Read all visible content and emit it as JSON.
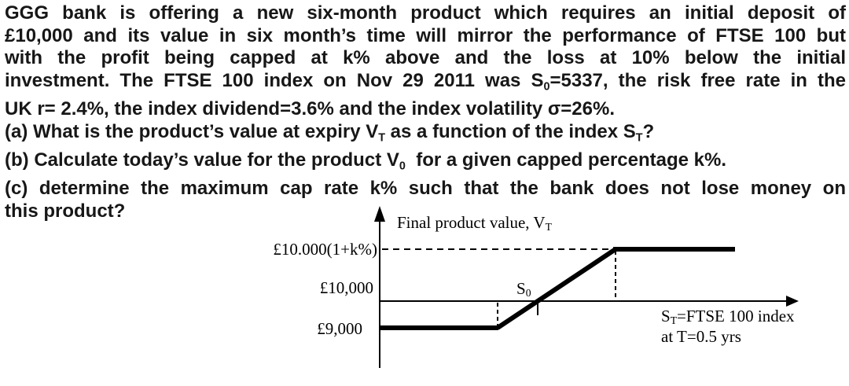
{
  "page": {
    "background": "#ffffff",
    "text_color": "#171717",
    "ink_color": "#000000"
  },
  "problem": {
    "lines": [
      {
        "justify": true,
        "segments": [
          {
            "t": "GGG bank is offering a new six-month product which requires an initial deposit of"
          }
        ]
      },
      {
        "justify": true,
        "segments": [
          {
            "t": "£10,000 and its value in six month’s time will mirror the performance of FTSE 100 but"
          }
        ]
      },
      {
        "justify": true,
        "segments": [
          {
            "t": "with the profit being capped at k% above and the loss at 10% below the initial"
          }
        ]
      },
      {
        "justify": true,
        "segments": [
          {
            "t": "investment. The FTSE 100 index on Nov 29 2011 was S"
          },
          {
            "t": "0",
            "s": 1
          },
          {
            "t": "=5337, the risk free rate in the"
          }
        ]
      },
      {
        "justify": false,
        "segments": [
          {
            "t": "UK r= 2.4%, the index dividend=3.6% and the index volatility σ=26%."
          }
        ]
      },
      {
        "justify": false,
        "segments": [
          {
            "t": "(a) What is the product’s value at expiry V"
          },
          {
            "t": "T",
            "s": 1
          },
          {
            "t": " as a function of the index S"
          },
          {
            "t": "T",
            "s": 1
          },
          {
            "t": "?"
          }
        ]
      },
      {
        "justify": false,
        "segments": [
          {
            "t": "(b) Calculate today’s value for the product V"
          },
          {
            "t": "0",
            "s": 1
          },
          {
            "t": "  for a given capped percentage k%."
          }
        ]
      },
      {
        "justify": true,
        "segments": [
          {
            "t": "(c) determine the maximum cap rate k% such that the bank does not lose money on"
          }
        ]
      },
      {
        "justify": false,
        "segments": [
          {
            "t": "this product?"
          }
        ]
      }
    ]
  },
  "figure": {
    "title_segments": [
      {
        "t": "Final product value, V"
      },
      {
        "t": "T",
        "s": 1
      }
    ],
    "y_axis_labels": {
      "cap": "£10.000(1+k%)",
      "initial": "£10,000",
      "floor": "£9,000"
    },
    "s0_tick_segments": [
      {
        "t": "S"
      },
      {
        "t": "0",
        "s": 1
      }
    ],
    "x_axis_label_line1_segments": [
      {
        "t": "S"
      },
      {
        "t": "T",
        "s": 1
      },
      {
        "t": "=FTSE 100 index"
      }
    ],
    "x_axis_label_line2": "at T=0.5 yrs",
    "payoff_shape": {
      "type": "line",
      "floor_level_label": "£9,000",
      "axis_level_label": "£10,000",
      "cap_level_label": "£10.000(1+k%)",
      "crosses_axis_at_label": "S0"
    }
  }
}
